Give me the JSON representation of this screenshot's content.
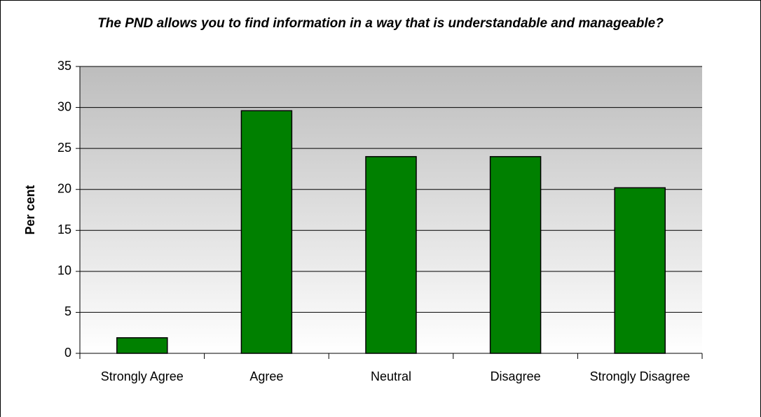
{
  "chart_data": {
    "type": "bar",
    "title": "The PND allows you to find information in a way that is understandable and manageable?",
    "y_label": "Per cent",
    "categories": [
      "Strongly Agree",
      "Agree",
      "Neutral",
      "Disagree",
      "Strongly Disagree"
    ],
    "values": [
      1.9,
      29.6,
      24,
      24,
      20.2
    ],
    "color": "#008000",
    "ylim": [
      0,
      35
    ],
    "yticks": [
      0,
      5,
      10,
      15,
      20,
      25,
      30,
      35
    ],
    "grid": true
  }
}
